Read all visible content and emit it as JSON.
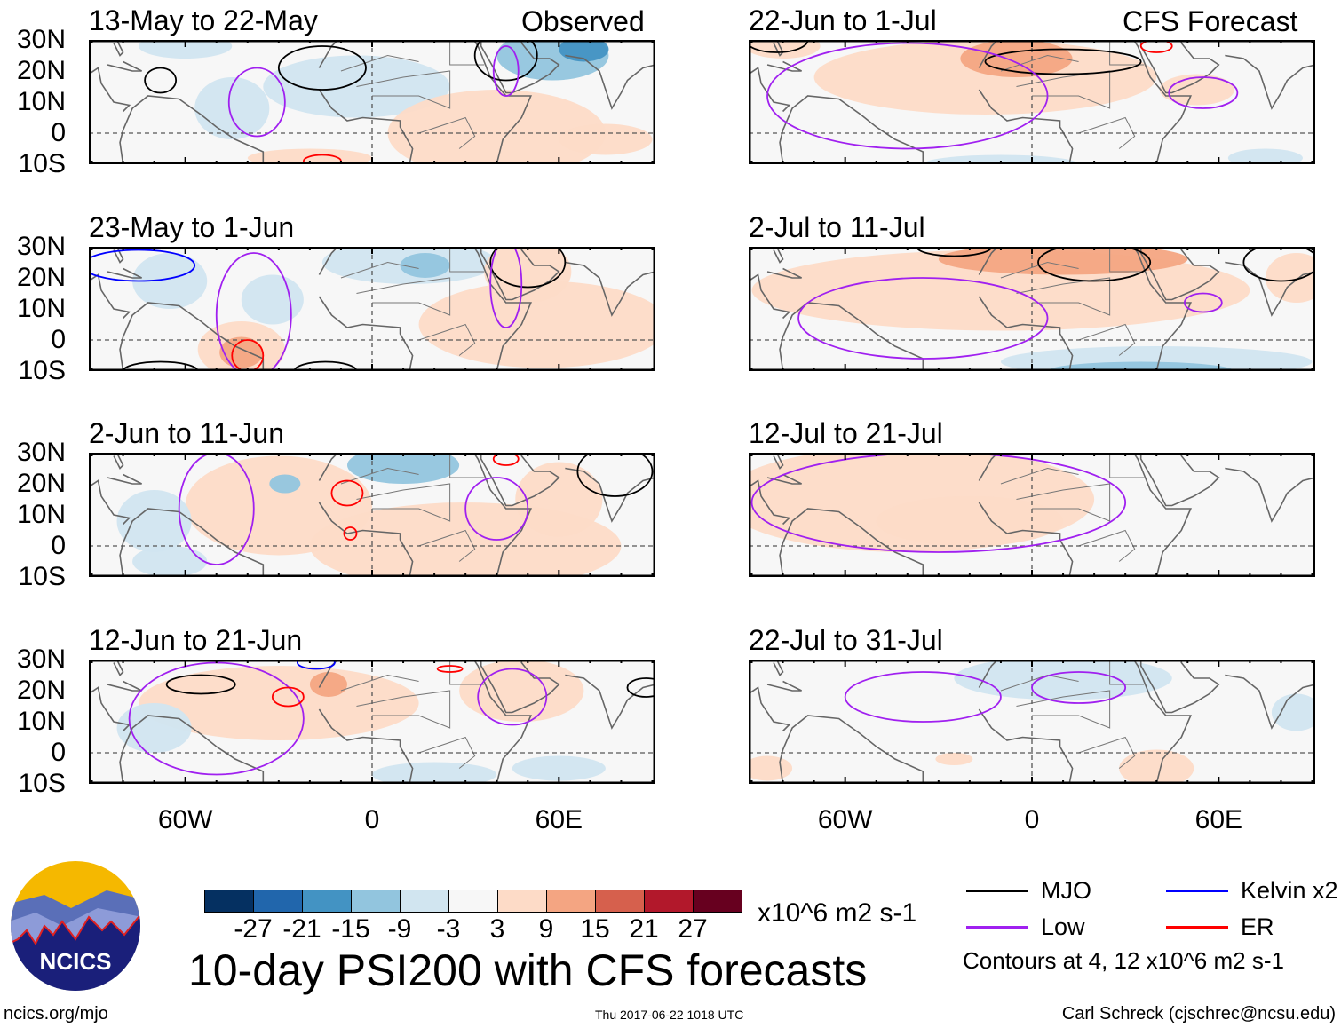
{
  "chart_data": {
    "type": "heatmap",
    "title": "10-day PSI200 with CFS forecasts",
    "units": "x10^6 m2 s-1",
    "column_labels": [
      "Observed",
      "CFS Forecast"
    ],
    "lat_ticks": [
      "30N",
      "20N",
      "10N",
      "0",
      "10S"
    ],
    "lon_ticks": [
      "60W",
      "0",
      "60E"
    ],
    "lon_range": [
      -91,
      91
    ],
    "lat_range": [
      -10,
      30
    ],
    "colorbar": {
      "ticks": [
        "-27",
        "-21",
        "-15",
        "-9",
        "-3",
        "3",
        "9",
        "15",
        "21",
        "27"
      ],
      "colors": [
        "#053061",
        "#2166ac",
        "#4393c3",
        "#92c5de",
        "#d1e5f0",
        "#f7f7f7",
        "#fddbc7",
        "#f4a582",
        "#d6604d",
        "#b2182b",
        "#67001f"
      ]
    },
    "legend": [
      {
        "label": "MJO",
        "color": "#000000"
      },
      {
        "label": "Kelvin x2",
        "color": "#0000ff"
      },
      {
        "label": "Low",
        "color": "#a020f0"
      },
      {
        "label": "ER",
        "color": "#ff0000"
      }
    ],
    "contour_note": "Contours at 4, 12 x10^6 m2 s-1",
    "panels": [
      {
        "title": "13-May to 22-May",
        "column": "Observed",
        "anomalies": [
          [
            -5,
            15,
            30,
            10,
            -6
          ],
          [
            -45,
            8,
            12,
            10,
            -5
          ],
          [
            58,
            25,
            18,
            8,
            -10
          ],
          [
            68,
            27,
            8,
            4,
            -16
          ],
          [
            40,
            0,
            35,
            14,
            6
          ],
          [
            -60,
            28,
            15,
            4,
            -4
          ],
          [
            -20,
            -8,
            20,
            3,
            5
          ],
          [
            75,
            -2,
            15,
            5,
            5
          ]
        ],
        "contours": [
          [
            "MJO",
            -16,
            21,
            14,
            7
          ],
          [
            "MJO",
            43,
            25,
            10,
            8
          ],
          [
            "MJO",
            -68,
            17,
            5,
            4
          ],
          [
            "Low",
            -37,
            10,
            9,
            11
          ],
          [
            "Low",
            43,
            20,
            4,
            8
          ],
          [
            "ER",
            -16,
            -9,
            6,
            2
          ]
        ]
      },
      {
        "title": "23-May to 1-Jun",
        "column": "Observed",
        "anomalies": [
          [
            -65,
            19,
            12,
            9,
            -6
          ],
          [
            -32,
            13,
            10,
            8,
            -4
          ],
          [
            12,
            25,
            28,
            7,
            -6
          ],
          [
            17,
            24,
            8,
            4,
            -11
          ],
          [
            50,
            22,
            14,
            10,
            8
          ],
          [
            -42,
            -3,
            14,
            9,
            6
          ],
          [
            -42,
            -4,
            7,
            5,
            14
          ],
          [
            55,
            5,
            40,
            14,
            5
          ]
        ],
        "contours": [
          [
            "Kelvin",
            -75,
            24,
            18,
            5
          ],
          [
            "MJO",
            50,
            25,
            12,
            8
          ],
          [
            "MJO",
            -68,
            -10,
            12,
            3
          ],
          [
            "MJO",
            -15,
            -10,
            10,
            3
          ],
          [
            "Low",
            -38,
            8,
            12,
            20
          ],
          [
            "Low",
            43,
            18,
            5,
            14
          ],
          [
            "ER",
            -40,
            -5,
            5,
            5
          ]
        ]
      },
      {
        "title": "2-Jun to 11-Jun",
        "column": "Observed",
        "anomalies": [
          [
            -30,
            13,
            30,
            16,
            5
          ],
          [
            10,
            26,
            18,
            6,
            -9
          ],
          [
            -28,
            20,
            5,
            3,
            -14
          ],
          [
            -70,
            8,
            12,
            10,
            -5
          ],
          [
            30,
            0,
            50,
            14,
            6
          ],
          [
            60,
            15,
            14,
            12,
            6
          ],
          [
            -65,
            -5,
            12,
            5,
            -4
          ]
        ],
        "contours": [
          [
            "MJO",
            78,
            24,
            12,
            8
          ],
          [
            "Low",
            -50,
            12,
            12,
            18
          ],
          [
            "Low",
            40,
            12,
            10,
            10
          ],
          [
            "ER",
            -8,
            17,
            5,
            4
          ],
          [
            "ER",
            -7,
            4,
            2,
            2
          ],
          [
            "ER",
            43,
            28,
            4,
            2
          ]
        ]
      },
      {
        "title": "12-Jun to 21-Jun",
        "column": "Observed",
        "anomalies": [
          [
            -30,
            16,
            45,
            12,
            5
          ],
          [
            -14,
            22,
            6,
            4,
            12
          ],
          [
            48,
            20,
            20,
            10,
            6
          ],
          [
            -70,
            8,
            12,
            8,
            -3
          ],
          [
            20,
            -7,
            20,
            4,
            -4
          ],
          [
            60,
            -5,
            15,
            4,
            -3
          ]
        ],
        "contours": [
          [
            "MJO",
            -55,
            22,
            11,
            3
          ],
          [
            "MJO",
            88,
            21,
            6,
            3
          ],
          [
            "Kelvin",
            -18,
            29,
            6,
            2
          ],
          [
            "Low",
            -50,
            11,
            28,
            18
          ],
          [
            "Low",
            45,
            18,
            11,
            9
          ],
          [
            "ER",
            -27,
            18,
            5,
            3
          ],
          [
            "ER",
            25,
            27,
            4,
            1
          ]
        ]
      },
      {
        "title": "22-Jun to 1-Jul",
        "column": "CFS Forecast",
        "anomalies": [
          [
            -15,
            18,
            55,
            12,
            5
          ],
          [
            -5,
            24,
            18,
            6,
            11
          ],
          [
            -80,
            28,
            12,
            4,
            9
          ],
          [
            53,
            14,
            12,
            5,
            9
          ],
          [
            -10,
            -10,
            25,
            3,
            -4
          ],
          [
            75,
            -8,
            12,
            3,
            -3
          ]
        ],
        "contours": [
          [
            "MJO",
            -82,
            30,
            10,
            4
          ],
          [
            "MJO",
            10,
            23,
            25,
            4
          ],
          [
            "Low",
            -40,
            12,
            45,
            17
          ],
          [
            "Low",
            55,
            13,
            11,
            5
          ],
          [
            "ER",
            40,
            28,
            5,
            2
          ]
        ]
      },
      {
        "title": "2-Jul to 11-Jul",
        "column": "CFS Forecast",
        "anomalies": [
          [
            -10,
            16,
            80,
            13,
            6
          ],
          [
            10,
            26,
            40,
            5,
            12
          ],
          [
            85,
            20,
            10,
            8,
            8
          ],
          [
            40,
            -7,
            50,
            5,
            -5
          ],
          [
            35,
            -10,
            30,
            3,
            -11
          ]
        ],
        "contours": [
          [
            "MJO",
            -25,
            30,
            12,
            3
          ],
          [
            "MJO",
            20,
            25,
            18,
            6
          ],
          [
            "MJO",
            80,
            25,
            12,
            6
          ],
          [
            "Low",
            -35,
            7,
            40,
            13
          ],
          [
            "Low",
            55,
            12,
            6,
            3
          ]
        ]
      },
      {
        "title": "12-Jul to 21-Jul",
        "column": "CFS Forecast",
        "anomalies": [
          [
            -40,
            15,
            60,
            17,
            5
          ],
          [
            -20,
            8,
            30,
            8,
            6
          ]
        ],
        "contours": [
          [
            "Low",
            -30,
            14,
            60,
            16
          ]
        ]
      },
      {
        "title": "22-Jul to 31-Jul",
        "column": "CFS Forecast",
        "anomalies": [
          [
            10,
            24,
            35,
            7,
            -4
          ],
          [
            85,
            13,
            8,
            6,
            -3
          ],
          [
            40,
            -5,
            12,
            6,
            5
          ],
          [
            -85,
            -5,
            8,
            4,
            5
          ],
          [
            -25,
            -2,
            6,
            2,
            4
          ]
        ],
        "contours": [
          [
            "Low",
            -35,
            18,
            25,
            8
          ],
          [
            "Low",
            15,
            21,
            15,
            5
          ]
        ]
      }
    ]
  },
  "footer": {
    "logo_text": "NCICS",
    "url": "ncics.org/mjo",
    "timestamp": "Thu 2017-06-22 1018 UTC",
    "author": "Carl Schreck (cjschrec@ncsu.edu)"
  }
}
